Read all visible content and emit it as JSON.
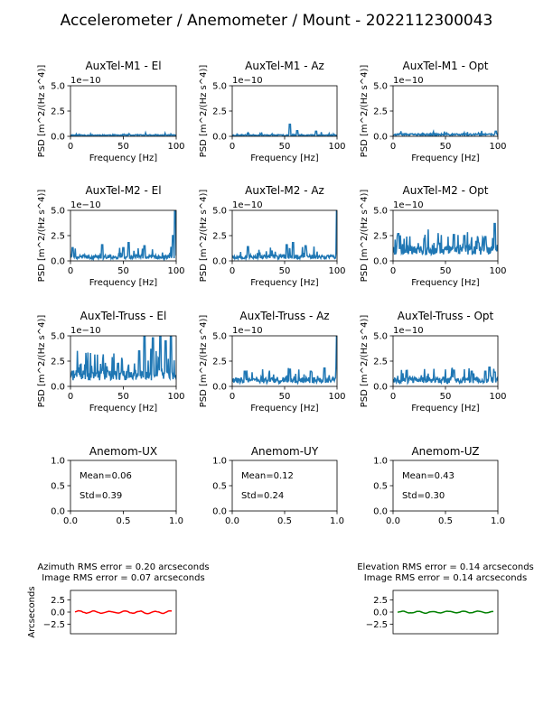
{
  "figure": {
    "title": "Accelerometer / Anemometer / Mount - 2022112300043"
  },
  "chart_data": [
    {
      "type": "line",
      "title": "AuxTel-M1 - El",
      "xlabel": "Frequency [Hz]",
      "ylabel": "PSD [m^2/(Hz s^4)]",
      "xlim": [
        0,
        100
      ],
      "ylim": [
        0,
        5
      ],
      "offset_label": "1e−10",
      "xticks": [
        "0",
        "50",
        "100"
      ],
      "yticks": [
        "0.0",
        "2.5",
        "5.0"
      ],
      "color": "#1f77b4",
      "seed": 11,
      "noise": {
        "base": 0.05,
        "spread": 0.12,
        "spike_prob": 0.04,
        "spike_max": 0.25
      },
      "peaks": []
    },
    {
      "type": "line",
      "title": "AuxTel-M1 - Az",
      "xlabel": "Frequency [Hz]",
      "ylabel": "PSD [m^2/(Hz s^4)]",
      "xlim": [
        0,
        100
      ],
      "ylim": [
        0,
        5
      ],
      "offset_label": "1e−10",
      "xticks": [
        "0",
        "50",
        "100"
      ],
      "yticks": [
        "0.0",
        "2.5",
        "5.0"
      ],
      "color": "#1f77b4",
      "seed": 23,
      "noise": {
        "base": 0.05,
        "spread": 0.12,
        "spike_prob": 0.05,
        "spike_max": 0.3
      },
      "peaks": [
        {
          "x": 55,
          "y": 1.2
        },
        {
          "x": 62,
          "y": 0.55
        },
        {
          "x": 80,
          "y": 0.5
        }
      ]
    },
    {
      "type": "line",
      "title": "AuxTel-M1 - Opt",
      "xlabel": "Frequency [Hz]",
      "ylabel": "PSD [m^2/(Hz s^4)]",
      "xlim": [
        0,
        100
      ],
      "ylim": [
        0,
        5
      ],
      "offset_label": "1e−10",
      "xticks": [
        "0",
        "50",
        "100"
      ],
      "yticks": [
        "0.0",
        "2.5",
        "5.0"
      ],
      "color": "#1f77b4",
      "seed": 37,
      "noise": {
        "base": 0.08,
        "spread": 0.18,
        "spike_prob": 0.06,
        "spike_max": 0.35
      },
      "peaks": [
        {
          "x": 98,
          "y": 0.5
        }
      ]
    },
    {
      "type": "line",
      "title": "AuxTel-M2 - El",
      "xlabel": "Frequency [Hz]",
      "ylabel": "PSD [m^2/(Hz s^4)]",
      "xlim": [
        0,
        100
      ],
      "ylim": [
        0,
        5
      ],
      "offset_label": "1e−10",
      "xticks": [
        "0",
        "50",
        "100"
      ],
      "yticks": [
        "0.0",
        "2.5",
        "5.0"
      ],
      "color": "#1f77b4",
      "seed": 41,
      "noise": {
        "base": 0.2,
        "spread": 0.4,
        "spike_prob": 0.1,
        "spike_max": 0.9
      },
      "peaks": [
        {
          "x": 2,
          "y": 1.3
        },
        {
          "x": 30,
          "y": 1.6
        },
        {
          "x": 50,
          "y": 1.3
        },
        {
          "x": 55,
          "y": 1.8
        },
        {
          "x": 70,
          "y": 1.5
        },
        {
          "x": 97,
          "y": 2.5
        },
        {
          "x": 99,
          "y": 5
        }
      ]
    },
    {
      "type": "line",
      "title": "AuxTel-M2 - Az",
      "xlabel": "Frequency [Hz]",
      "ylabel": "PSD [m^2/(Hz s^4)]",
      "xlim": [
        0,
        100
      ],
      "ylim": [
        0,
        5
      ],
      "offset_label": "1e−10",
      "xticks": [
        "0",
        "50",
        "100"
      ],
      "yticks": [
        "0.0",
        "2.5",
        "5.0"
      ],
      "color": "#1f77b4",
      "seed": 53,
      "noise": {
        "base": 0.2,
        "spread": 0.4,
        "spike_prob": 0.1,
        "spike_max": 0.9
      },
      "peaks": [
        {
          "x": 15,
          "y": 1.4
        },
        {
          "x": 52,
          "y": 1.6
        },
        {
          "x": 58,
          "y": 1.8
        },
        {
          "x": 70,
          "y": 1.5
        },
        {
          "x": 100,
          "y": 5
        }
      ]
    },
    {
      "type": "line",
      "title": "AuxTel-M2 - Opt",
      "xlabel": "Frequency [Hz]",
      "ylabel": "PSD [m^2/(Hz s^4)]",
      "xlim": [
        0,
        100
      ],
      "ylim": [
        0,
        5
      ],
      "offset_label": "1e−10",
      "xticks": [
        "0",
        "50",
        "100"
      ],
      "yticks": [
        "0.0",
        "2.5",
        "5.0"
      ],
      "color": "#1f77b4",
      "seed": 67,
      "noise": {
        "base": 0.6,
        "spread": 0.9,
        "spike_prob": 0.2,
        "spike_max": 1.8
      },
      "peaks": [
        {
          "x": 5,
          "y": 2.7
        },
        {
          "x": 30,
          "y": 2.2
        },
        {
          "x": 58,
          "y": 2.6
        },
        {
          "x": 68,
          "y": 2.5
        },
        {
          "x": 88,
          "y": 2.4
        },
        {
          "x": 97,
          "y": 3.7
        }
      ]
    },
    {
      "type": "line",
      "title": "AuxTel-Truss - El",
      "xlabel": "Frequency [Hz]",
      "ylabel": "PSD [m^2/(Hz s^4)]",
      "xlim": [
        0,
        100
      ],
      "ylim": [
        0,
        5
      ],
      "offset_label": "1e−10",
      "xticks": [
        "0",
        "50",
        "100"
      ],
      "yticks": [
        "0.0",
        "2.5",
        "5.0"
      ],
      "color": "#1f77b4",
      "seed": 71,
      "noise": {
        "base": 0.6,
        "spread": 1.0,
        "spike_prob": 0.25,
        "spike_max": 2.5
      },
      "peaks": [
        {
          "x": 15,
          "y": 1.9
        },
        {
          "x": 45,
          "y": 2.2
        },
        {
          "x": 65,
          "y": 3.5
        },
        {
          "x": 70,
          "y": 5
        },
        {
          "x": 78,
          "y": 4.8
        },
        {
          "x": 85,
          "y": 5
        },
        {
          "x": 90,
          "y": 4.5
        },
        {
          "x": 95,
          "y": 5
        }
      ]
    },
    {
      "type": "line",
      "title": "AuxTel-Truss - Az",
      "xlabel": "Frequency [Hz]",
      "ylabel": "PSD [m^2/(Hz s^4)]",
      "xlim": [
        0,
        100
      ],
      "ylim": [
        0,
        5
      ],
      "offset_label": "1e−10",
      "xticks": [
        "0",
        "50",
        "100"
      ],
      "yticks": [
        "0.0",
        "2.5",
        "5.0"
      ],
      "color": "#1f77b4",
      "seed": 83,
      "noise": {
        "base": 0.3,
        "spread": 0.6,
        "spike_prob": 0.15,
        "spike_max": 1.2
      },
      "peaks": [
        {
          "x": 12,
          "y": 1.5
        },
        {
          "x": 55,
          "y": 1.7
        },
        {
          "x": 75,
          "y": 1.5
        },
        {
          "x": 88,
          "y": 1.8
        },
        {
          "x": 100,
          "y": 5
        }
      ]
    },
    {
      "type": "line",
      "title": "AuxTel-Truss - Opt",
      "xlabel": "Frequency [Hz]",
      "ylabel": "PSD [m^2/(Hz s^4)]",
      "xlim": [
        0,
        100
      ],
      "ylim": [
        0,
        5
      ],
      "offset_label": "1e−10",
      "xticks": [
        "0",
        "50",
        "100"
      ],
      "yticks": [
        "0.0",
        "2.5",
        "5.0"
      ],
      "color": "#1f77b4",
      "seed": 97,
      "noise": {
        "base": 0.3,
        "spread": 0.6,
        "spike_prob": 0.15,
        "spike_max": 1.0
      },
      "peaks": [
        {
          "x": 58,
          "y": 1.6
        },
        {
          "x": 75,
          "y": 1.5
        },
        {
          "x": 88,
          "y": 1.5
        },
        {
          "x": 92,
          "y": 1.9
        },
        {
          "x": 97,
          "y": 1.4
        }
      ]
    },
    {
      "type": "text",
      "title": "Anemom-UX",
      "xlim": [
        0,
        1
      ],
      "ylim": [
        0,
        1
      ],
      "xticks": [
        "0.0",
        "0.5",
        "1.0"
      ],
      "yticks": [
        "0.0",
        "0.5",
        "1.0"
      ],
      "mean_label": "Mean=0.06",
      "std_label": "Std=0.39"
    },
    {
      "type": "text",
      "title": "Anemom-UY",
      "xlim": [
        0,
        1
      ],
      "ylim": [
        0,
        1
      ],
      "xticks": [
        "0.0",
        "0.5",
        "1.0"
      ],
      "yticks": [
        "0.0",
        "0.5",
        "1.0"
      ],
      "mean_label": "Mean=0.12",
      "std_label": "Std=0.24"
    },
    {
      "type": "text",
      "title": "Anemom-UZ",
      "xlim": [
        0,
        1
      ],
      "ylim": [
        0,
        1
      ],
      "xticks": [
        "0.0",
        "0.5",
        "1.0"
      ],
      "yticks": [
        "0.0",
        "0.5",
        "1.0"
      ],
      "mean_label": "Mean=0.43",
      "std_label": "Std=0.30"
    },
    {
      "type": "line",
      "title": "Azimuth RMS error = 0.20 arcseconds",
      "subtitle": "Image RMS error = 0.07 arcseconds",
      "ylabel": "Arcseconds",
      "ylim": [
        -4.5,
        4.5
      ],
      "yticks": [
        "2.5",
        "0.0",
        "−2.5"
      ],
      "color": "#ff0000",
      "seed": 101,
      "amplitude": 0.35
    },
    {
      "type": "line",
      "title": "Elevation RMS error = 0.14 arcseconds",
      "subtitle": "Image RMS error = 0.14 arcseconds",
      "ylabel": "",
      "ylim": [
        -4.5,
        4.5
      ],
      "yticks": [
        "2.5",
        "0.0",
        "−2.5"
      ],
      "color": "#008000",
      "seed": 113,
      "amplitude": 0.25
    }
  ]
}
